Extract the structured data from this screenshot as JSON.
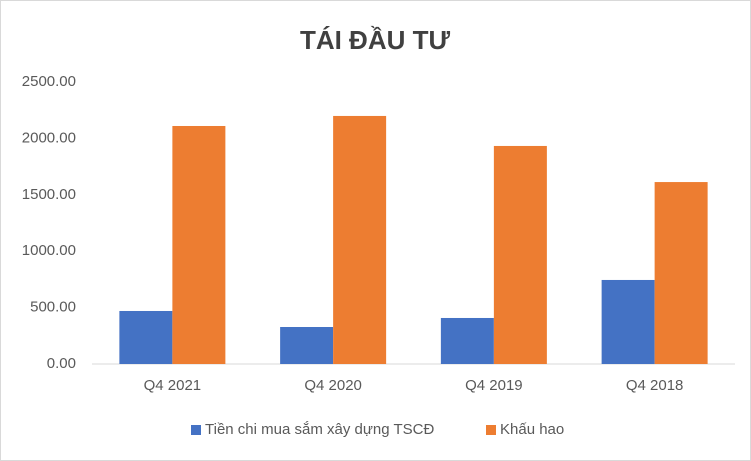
{
  "chart_data": {
    "type": "bar",
    "title": "TÁI ĐẦU TƯ",
    "categories": [
      "Q4 2021",
      "Q4 2020",
      "Q4 2019",
      "Q4 2018"
    ],
    "series": [
      {
        "name": "Tiền chi mua sắm xây dựng TSCĐ",
        "color": "#4472c4",
        "values": [
          470,
          328,
          408,
          745
        ]
      },
      {
        "name": "Khấu hao",
        "color": "#ed7d31",
        "values": [
          2110,
          2199,
          1933,
          1613
        ]
      }
    ],
    "ylim": [
      0,
      2500
    ],
    "yticks": [
      {
        "value": 0,
        "label": "0.00"
      },
      {
        "value": 500,
        "label": "500.00"
      },
      {
        "value": 1000,
        "label": "1000.00"
      },
      {
        "value": 1500,
        "label": "1500.00"
      },
      {
        "value": 2000,
        "label": "2000.00"
      },
      {
        "value": 2500,
        "label": "2500.00"
      }
    ],
    "grid": false,
    "legend": "bottom"
  }
}
